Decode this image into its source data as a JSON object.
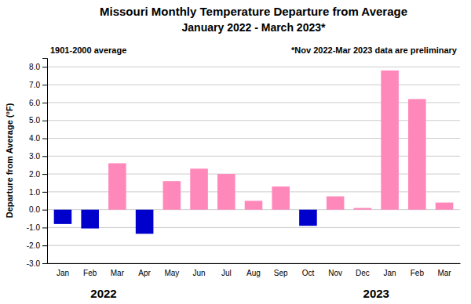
{
  "chart_data": {
    "type": "bar",
    "title": "Missouri Monthly Temperature Departure from Average",
    "subtitle": "January 2022 - March 2023*",
    "ylabel": "Departure from Average (°F)",
    "annotations": [
      {
        "text": "1901-2000 average"
      },
      {
        "text": "*Nov 2022-Mar 2023 data are preliminary"
      },
      {
        "text": "2022",
        "x": 1.5
      },
      {
        "text": "2023",
        "x": 11.5
      }
    ],
    "categories": [
      "Jan",
      "Feb",
      "Mar",
      "Apr",
      "May",
      "Jun",
      "Jul",
      "Aug",
      "Sep",
      "Oct",
      "Nov",
      "Dec",
      "Jan",
      "Feb",
      "Mar"
    ],
    "values": [
      -0.8,
      -1.05,
      2.6,
      -1.35,
      1.6,
      2.3,
      2.0,
      0.5,
      1.3,
      -0.9,
      0.75,
      0.1,
      7.8,
      6.2,
      0.4
    ],
    "colors": [
      "#0000cc",
      "#0000cc",
      "#ff88bb",
      "#0000cc",
      "#ff88bb",
      "#ff88bb",
      "#ff88bb",
      "#ff88bb",
      "#ff88bb",
      "#0000cc",
      "#ff88bb",
      "#ff88bb",
      "#ff88bb",
      "#ff88bb",
      "#ff88bb"
    ],
    "ylim": [
      -3.0,
      8.5
    ],
    "yticks": [
      {
        "value": -3.0,
        "label": "-3.0"
      },
      {
        "value": -2.0,
        "label": "-2.0"
      },
      {
        "value": -1.0,
        "label": "-1.0"
      },
      {
        "value": 0.0,
        "label": "0.0"
      },
      {
        "value": 1.0,
        "label": "1.0"
      },
      {
        "value": 2.0,
        "label": "2.0"
      },
      {
        "value": 3.0,
        "label": "3.0"
      },
      {
        "value": 4.0,
        "label": "4.0"
      },
      {
        "value": 5.0,
        "label": "5.0"
      },
      {
        "value": 6.0,
        "label": "6.0"
      },
      {
        "value": 7.0,
        "label": "7.0"
      },
      {
        "value": 8.0,
        "label": "8.0"
      }
    ],
    "grid": true
  }
}
